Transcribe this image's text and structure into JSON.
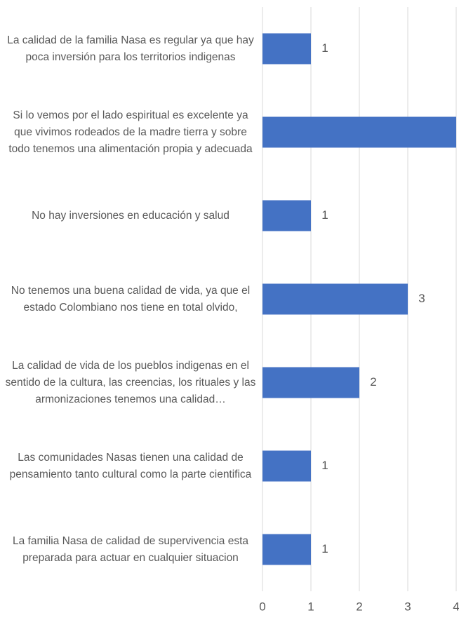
{
  "chart_data": {
    "type": "hbar",
    "categories": [
      "La calidad de la familia Nasa es regular ya que hay poca inversión para los territorios indigenas",
      "Si lo vemos por el lado espiritual es excelente ya que vivimos rodeados de la madre tierra y sobre todo tenemos una alimentación propia y adecuada",
      "No hay inversiones en educación y salud",
      "No tenemos una buena calidad de vida, ya que el estado Colombiano nos tiene en total olvido,",
      "La calidad de vida de los pueblos indigenas en el sentido de la cultura, las creencias, los rituales y las armonizaciones tenemos una calidad…",
      "Las comunidades Nasas tienen una calidad de pensamiento tanto cultural como la parte cientifica",
      "La familia Nasa de calidad de supervivencia esta preparada para actuar en cualquier situacion"
    ],
    "values": [
      1,
      4,
      1,
      3,
      2,
      1,
      1
    ],
    "color": "#4472c4",
    "xlim": [
      0,
      4
    ],
    "xticks": [
      0,
      1,
      2,
      3,
      4
    ],
    "grid": true
  }
}
